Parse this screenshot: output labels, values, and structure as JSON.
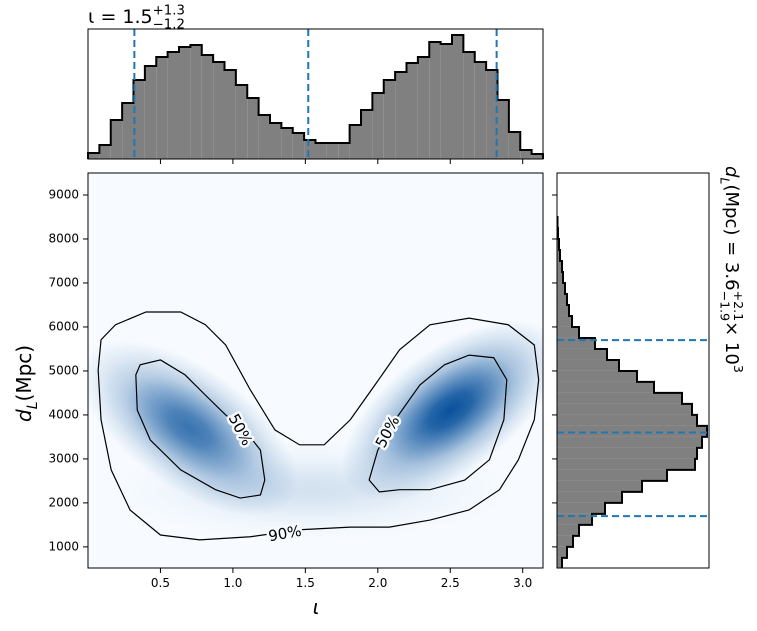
{
  "chart_data": {
    "type": "corner",
    "x_label": "ι",
    "y_label": [
      {
        "text": "d",
        "kind": "italic"
      },
      {
        "text": "L",
        "kind": "sub"
      },
      {
        "text": " (Mpc)",
        "kind": "normal"
      }
    ],
    "xlim": [
      0,
      3.14
    ],
    "xticks": [
      0.5,
      {
        "value": 1,
        "label": "1.0"
      },
      1.5,
      {
        "value": 2,
        "label": "2.0"
      },
      2.5,
      {
        "value": 3,
        "label": "3.0"
      }
    ],
    "ylim": [
      520,
      9500
    ],
    "yticks": [
      1000,
      2000,
      3000,
      4000,
      5000,
      6000,
      7000,
      8000,
      9000
    ],
    "density_color": "#08519c",
    "background": "#f7fbff",
    "density": [
      {
        "x": 0.7,
        "y": 3700,
        "sx": 0.3,
        "sy": 800,
        "rho": -0.6,
        "weight": 0.8
      },
      {
        "x": 2.5,
        "y": 4100,
        "sx": 0.3,
        "sy": 820,
        "rho": 0.6,
        "weight": 1.0
      },
      {
        "x": 1.55,
        "y": 2300,
        "sx": 0.55,
        "sy": 450,
        "rho": 0,
        "weight": 0.15
      }
    ],
    "contours": [
      {
        "label": "90%",
        "x": [
          0.07,
          0.09,
          0.19,
          0.4,
          0.64,
          0.81,
          0.95,
          1.12,
          1.29,
          1.46,
          1.63,
          1.81,
          1.98,
          2.15,
          2.36,
          2.63,
          2.9,
          3.08,
          3.11,
          3.08,
          2.97,
          2.84,
          2.63,
          2.36,
          2.08,
          1.81,
          1.46,
          1.12,
          0.77,
          0.5,
          0.29,
          0.16,
          0.09
        ],
        "y": [
          5020,
          5710,
          6050,
          6340,
          6340,
          6050,
          5590,
          4570,
          3660,
          3320,
          3320,
          3890,
          4680,
          5480,
          6050,
          6200,
          6050,
          5590,
          4800,
          3890,
          2980,
          2300,
          1840,
          1610,
          1450,
          1450,
          1390,
          1230,
          1160,
          1270,
          1840,
          2750,
          3890
        ]
      },
      {
        "label": "50%",
        "x": [
          0.33,
          0.36,
          0.5,
          0.67,
          0.81,
          0.95,
          1.08,
          1.19,
          1.22,
          1.19,
          1.05,
          0.88,
          0.64,
          0.43,
          0.34
        ],
        "y": [
          4910,
          5140,
          5250,
          4910,
          4450,
          4000,
          3660,
          3200,
          2520,
          2180,
          2110,
          2300,
          2750,
          3430,
          4110
        ]
      },
      {
        "label": "50%",
        "x": [
          1.94,
          2.0,
          2.12,
          2.29,
          2.46,
          2.63,
          2.8,
          2.89,
          2.87,
          2.77,
          2.6,
          2.36,
          2.15,
          2.01
        ],
        "y": [
          2520,
          3200,
          3890,
          4680,
          5140,
          5360,
          5300,
          4800,
          3890,
          2980,
          2520,
          2300,
          2300,
          2250
        ]
      }
    ],
    "quantile_color": "#1f77b4",
    "x_marginal": {
      "type": "histogram",
      "title": [
        {
          "text": "ι = 1.5",
          "kind": "normal"
        },
        {
          "text": "+1.3",
          "kind": "sup"
        },
        {
          "text": "−1.2",
          "kind": "stacksub"
        }
      ],
      "color": "#808080",
      "bins": [
        0,
        0.0785,
        0.157,
        0.2355,
        0.314,
        0.3925,
        0.471,
        0.5495,
        0.628,
        0.7065,
        0.785,
        0.8635,
        0.942,
        1.0205,
        1.099,
        1.1775,
        1.256,
        1.3345,
        1.413,
        1.4915,
        1.57,
        1.6485,
        1.727,
        1.8055,
        1.884,
        1.9625,
        2.041,
        2.1195,
        2.198,
        2.2765,
        2.355,
        2.4335,
        2.512,
        2.5905,
        2.669,
        2.7475,
        2.826,
        2.9045,
        2.983,
        3.0615,
        3.14
      ],
      "counts": [
        6,
        14,
        39,
        56,
        79,
        93,
        102,
        107,
        112,
        114,
        104,
        97,
        89,
        74,
        61,
        44,
        36,
        31,
        26,
        19,
        16,
        16,
        16,
        34,
        49,
        66,
        79,
        87,
        96,
        102,
        117,
        115,
        124,
        107,
        97,
        89,
        59,
        27,
        9,
        5
      ],
      "lim": [
        0,
        130
      ],
      "quantiles": [
        0.32,
        1.52,
        2.82
      ]
    },
    "y_marginal": {
      "type": "histogram",
      "title": [
        {
          "text": "d",
          "kind": "italic"
        },
        {
          "text": "L",
          "kind": "sub"
        },
        {
          "text": " (Mpc) = 3.6",
          "kind": "normal"
        },
        {
          "text": "+2.1",
          "kind": "sup"
        },
        {
          "text": "−1.9",
          "kind": "stacksub"
        },
        {
          "text": " × 10",
          "kind": "normal"
        },
        {
          "text": "3",
          "kind": "sup"
        }
      ],
      "color": "#808080",
      "bins": [
        500,
        750,
        1000,
        1250,
        1500,
        1750,
        2000,
        2250,
        2500,
        2750,
        3000,
        3250,
        3500,
        3750,
        4000,
        4250,
        4500,
        4750,
        5000,
        5250,
        5500,
        5750,
        6000,
        6250,
        6500,
        6750,
        7000,
        7250,
        7500,
        7750,
        8000,
        8250,
        8500
      ],
      "counts": [
        5,
        10,
        16,
        22,
        35,
        48,
        65,
        85,
        110,
        138,
        140,
        145,
        150,
        140,
        135,
        125,
        97,
        80,
        62,
        50,
        38,
        22,
        15,
        12,
        10,
        8,
        6,
        5,
        3,
        2,
        1,
        0.5
      ],
      "lim": [
        0,
        152
      ],
      "quantiles": [
        1700,
        3600,
        5700
      ]
    }
  }
}
